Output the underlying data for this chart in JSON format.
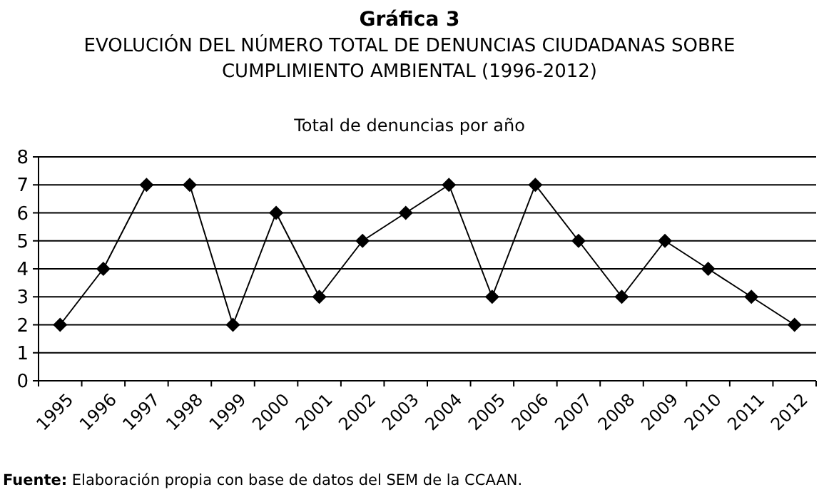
{
  "chart_data": {
    "type": "line",
    "title": "Gráfica 3",
    "subtitle": "EVOLUCIÓN DEL NÚMERO TOTAL DE DENUNCIAS CIUDADANAS SOBRE CUMPLIMIENTO AMBIENTAL (1996-2012)",
    "ylabel": "Total de denuncias por año",
    "categories": [
      "1995",
      "1996",
      "1997",
      "1998",
      "1999",
      "2000",
      "2001",
      "2002",
      "2003",
      "2004",
      "2005",
      "2006",
      "2007",
      "2008",
      "2009",
      "2010",
      "2011",
      "2012"
    ],
    "series": [
      {
        "color": "#000000",
        "values": [
          2,
          4,
          7,
          7,
          2,
          6,
          3,
          5,
          6,
          7,
          3,
          7,
          5,
          3,
          5,
          4,
          3,
          2
        ]
      }
    ],
    "ylim": [
      0,
      8
    ],
    "yticks": [
      0,
      1,
      2,
      3,
      4,
      5,
      6,
      7,
      8
    ],
    "grid": "y",
    "marker": "diamond",
    "line_style": "solid",
    "annotations": [
      "Fuente: Elaboración propia con base de datos del SEM de la CCAAN."
    ]
  }
}
